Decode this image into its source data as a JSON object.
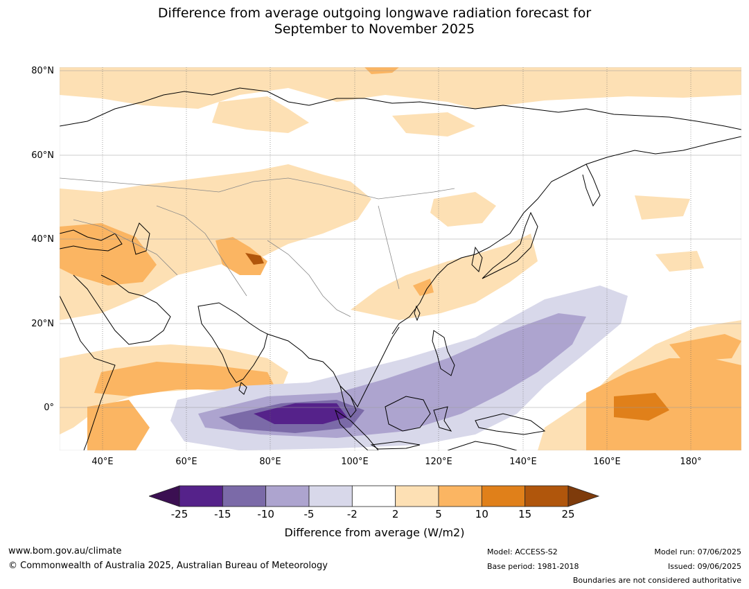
{
  "title": {
    "line1": "Difference from average outgoing longwave radiation forecast for",
    "line2": "September to November 2025"
  },
  "map": {
    "lat_labels": [
      "80°N",
      "60°N",
      "40°N",
      "20°N",
      "0°"
    ],
    "lon_labels": [
      "40°E",
      "60°E",
      "80°E",
      "100°E",
      "120°E",
      "140°E",
      "160°E",
      "180°"
    ]
  },
  "colorbar": {
    "ticks": [
      "-25",
      "-15",
      "-10",
      "-5",
      "-2",
      "2",
      "5",
      "10",
      "15",
      "25"
    ],
    "label": "Difference from average (W/m2)",
    "colors": {
      "below": "#3b0f52",
      "bins": [
        "#55228a",
        "#7b6aa8",
        "#ada4cf",
        "#d8d8ea",
        "#ffffff",
        "#fde0b4",
        "#fbb562",
        "#e0801a",
        "#b0560c"
      ],
      "above": "#7e3b0b"
    }
  },
  "footer": {
    "website": "www.bom.gov.au/climate",
    "copyright": "© Commonwealth of Australia 2025, Australian Bureau of Meteorology",
    "model": "Model: ACCESS-S2",
    "base_period": "Base period: 1981-2018",
    "model_run": "Model run: 07/06/2025",
    "issued": "Issued: 09/06/2025",
    "disclaimer": "Boundaries are not considered authoritative"
  }
}
